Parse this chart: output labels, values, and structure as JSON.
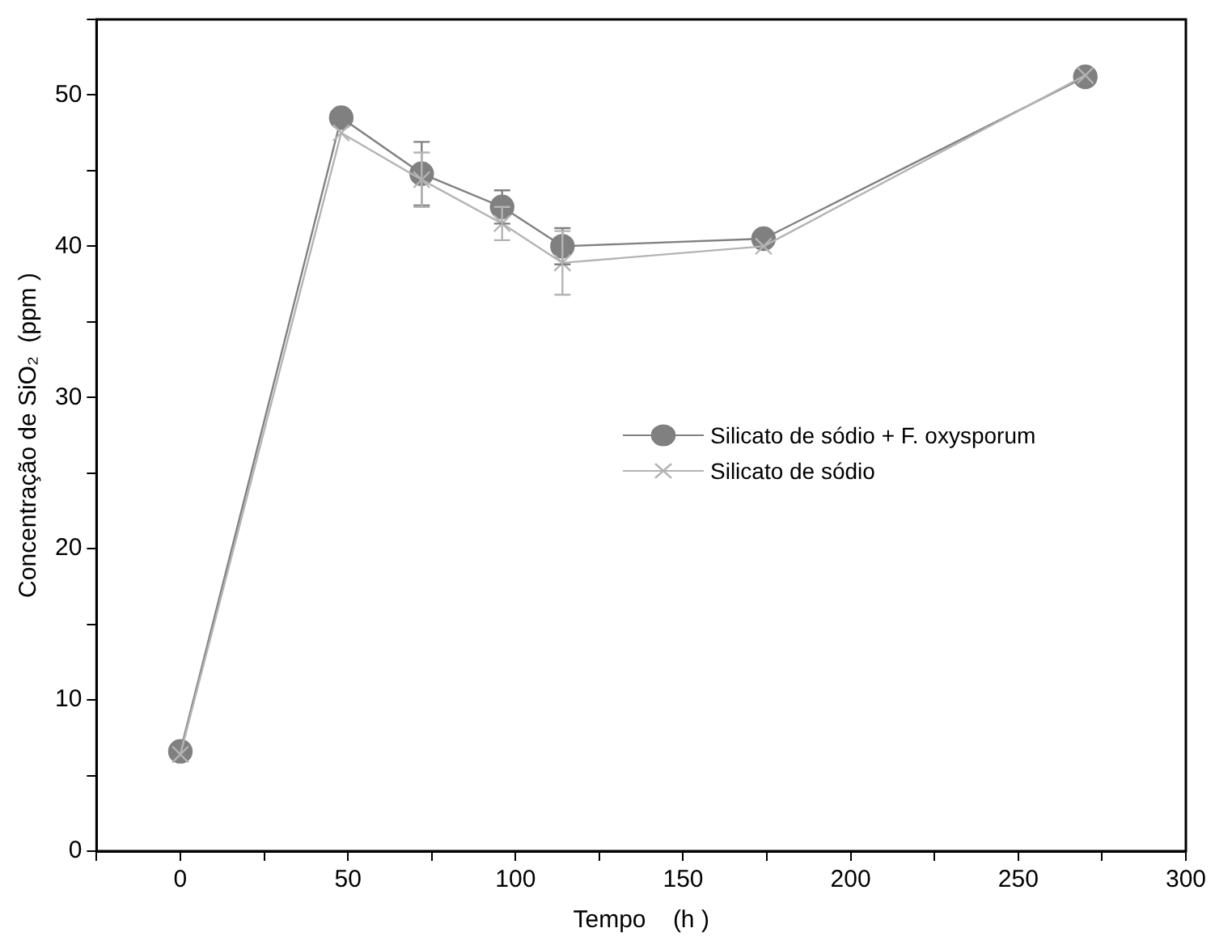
{
  "chart_data": {
    "type": "line",
    "xlabel": "Tempo    (h )",
    "ylabel": "Concentração de SiO₂  (ppm )",
    "xlim": [
      -25,
      300
    ],
    "ylim": [
      0,
      55
    ],
    "xticks": [
      {
        "value": -25,
        "label": null
      },
      0,
      {
        "value": 25,
        "label": null
      },
      50,
      {
        "value": 75,
        "label": null
      },
      100,
      {
        "value": 125,
        "label": null
      },
      150,
      {
        "value": 175,
        "label": null
      },
      200,
      {
        "value": 225,
        "label": null
      },
      250,
      {
        "value": 275,
        "label": null
      },
      300
    ],
    "yticks": [
      0,
      {
        "value": 5,
        "label": null
      },
      10,
      {
        "value": 15,
        "label": null
      },
      20,
      {
        "value": 25,
        "label": null
      },
      30,
      {
        "value": 35,
        "label": null
      },
      40,
      {
        "value": 45,
        "label": null
      },
      50,
      {
        "value": 55,
        "label": null
      }
    ],
    "x": [
      0,
      48,
      72,
      96,
      114,
      174,
      270
    ],
    "series": [
      {
        "name": "Silicato de sódio + F. oxysporum",
        "color": "#808080",
        "marker": "circle",
        "values": [
          6.6,
          48.5,
          44.8,
          42.6,
          40.0,
          40.5,
          51.2
        ],
        "errors": [
          null,
          null,
          2.1,
          1.1,
          1.2,
          null,
          null
        ]
      },
      {
        "name": "Silicato de sódio",
        "color": "#b4b4b4",
        "marker": "cross",
        "values": [
          6.4,
          47.5,
          44.4,
          41.5,
          38.9,
          40.0,
          51.3
        ],
        "errors": [
          null,
          null,
          1.8,
          1.1,
          2.1,
          null,
          null
        ]
      }
    ],
    "legend": "right",
    "grid": false,
    "line_style": "solid"
  }
}
